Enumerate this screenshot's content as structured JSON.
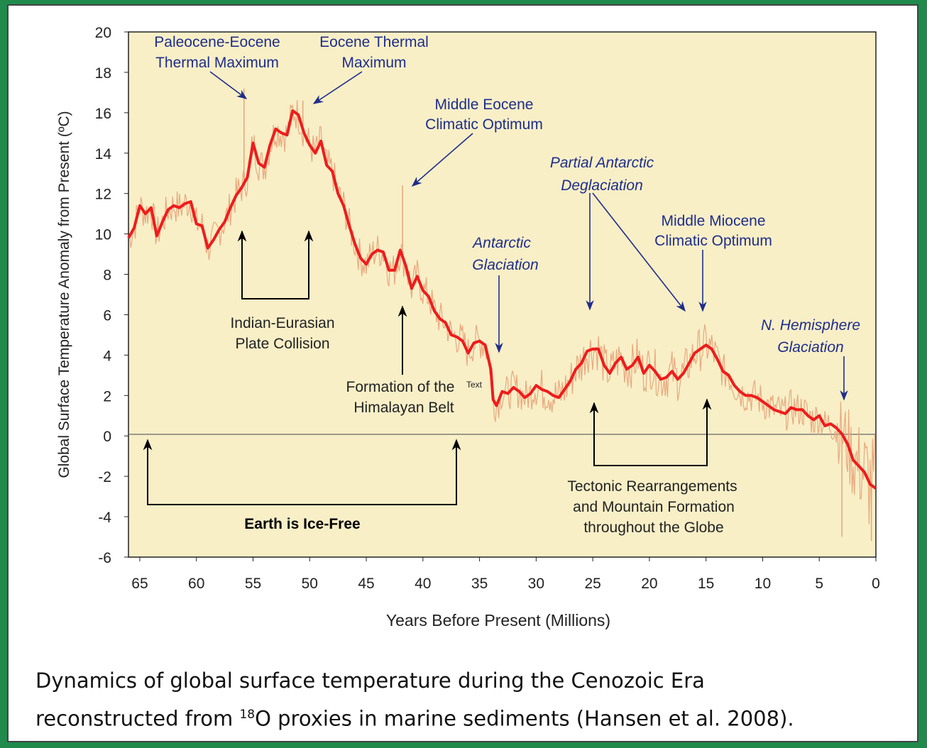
{
  "chart_data": {
    "type": "line",
    "xlabel": "Years Before Present (Millions)",
    "ylabel": "Global Surface Temperature Anomaly from Present (ºC)",
    "xlim": [
      66,
      0
    ],
    "ylim": [
      -6,
      20
    ],
    "x_ticks": [
      "65",
      "60",
      "55",
      "50",
      "45",
      "40",
      "35",
      "30",
      "25",
      "20",
      "15",
      "10",
      "5",
      "0"
    ],
    "y_ticks": [
      "20",
      "18",
      "16",
      "14",
      "12",
      "10",
      "8",
      "6",
      "4",
      "2",
      "0",
      "-2",
      "-4",
      "-6"
    ],
    "grid": false,
    "series": [
      {
        "smoothed": true,
        "x": [
          66,
          65.5,
          65,
          64.5,
          64,
          63.5,
          63,
          62.5,
          62,
          61.5,
          61,
          60.5,
          60,
          59.5,
          59,
          58.5,
          58,
          57.5,
          57,
          56.5,
          56,
          55.5,
          55,
          54.5,
          54,
          53.5,
          53,
          52.5,
          52,
          51.5,
          51,
          50.5,
          50,
          49.5,
          49,
          48.5,
          48,
          47.5,
          47,
          46.5,
          46,
          45.5,
          45,
          44.5,
          44,
          43.5,
          43,
          42.5,
          42,
          41.5,
          41,
          40.5,
          40,
          39.5,
          39,
          38.5,
          38,
          37.5,
          37,
          36.5,
          36,
          35.5,
          35,
          34.5,
          34,
          33.8,
          33.5,
          33,
          32.5,
          32,
          31.5,
          31,
          30.5,
          30,
          29.5,
          29,
          28.5,
          28,
          27.5,
          27,
          26.5,
          26,
          25.5,
          25,
          24.5,
          24,
          23.5,
          23,
          22.5,
          22,
          21.5,
          21,
          20.5,
          20,
          19.5,
          19,
          18.5,
          18,
          17.5,
          17,
          16.5,
          16,
          15.5,
          15,
          14.5,
          14,
          13.5,
          13,
          12.5,
          12,
          11.5,
          11,
          10.5,
          10,
          9.5,
          9,
          8.5,
          8,
          7.5,
          7,
          6.5,
          6,
          5.5,
          5,
          4.5,
          4,
          3.5,
          3,
          2.5,
          2,
          1.5,
          1,
          0.5,
          0
        ],
        "y": [
          9.8,
          10.3,
          11.4,
          11.0,
          11.3,
          9.9,
          10.6,
          11.2,
          11.4,
          11.3,
          11.5,
          11.6,
          10.5,
          10.4,
          9.3,
          9.7,
          10.2,
          10.6,
          11.3,
          11.9,
          12.3,
          12.8,
          14.5,
          13.5,
          13.3,
          14.4,
          15.2,
          15.0,
          14.9,
          16.1,
          15.9,
          15.0,
          14.4,
          14.0,
          14.6,
          13.4,
          13.1,
          12.0,
          11.4,
          10.4,
          9.5,
          8.8,
          8.5,
          9.0,
          9.2,
          9.1,
          8.2,
          8.2,
          9.2,
          8.4,
          7.3,
          7.9,
          7.2,
          6.9,
          6.2,
          5.8,
          5.6,
          5.0,
          4.9,
          4.7,
          4.1,
          4.6,
          4.7,
          4.5,
          3.3,
          1.8,
          1.5,
          2.2,
          2.1,
          2.4,
          2.2,
          1.9,
          2.1,
          2.5,
          2.3,
          2.2,
          2.0,
          1.9,
          2.3,
          2.7,
          3.3,
          3.6,
          4.2,
          4.3,
          4.3,
          3.5,
          3.1,
          3.6,
          3.9,
          3.3,
          3.5,
          3.9,
          3.1,
          3.5,
          3.2,
          2.8,
          2.9,
          3.2,
          2.8,
          3.1,
          3.6,
          4.1,
          4.3,
          4.5,
          4.3,
          3.8,
          3.2,
          3.0,
          2.5,
          2.2,
          2.0,
          2.0,
          1.9,
          1.7,
          1.5,
          1.3,
          1.2,
          1.1,
          1.4,
          1.3,
          1.3,
          1.0,
          0.8,
          1.0,
          0.5,
          0.6,
          0.4,
          0.1,
          -0.4,
          -1.2,
          -1.5,
          -1.8,
          -2.4,
          -2.6
        ]
      }
    ],
    "annotations": {
      "petm": [
        "Paleocene-Eocene",
        "Thermal Maximum"
      ],
      "etm": [
        "Eocene Thermal",
        "Maximum"
      ],
      "meco": [
        "Middle Eocene",
        "Climatic Optimum"
      ],
      "pad": [
        "Partial Antarctic",
        "Deglaciation"
      ],
      "mmco": [
        "Middle Miocene",
        "Climatic Optimum"
      ],
      "ag": [
        "Antarctic",
        "Glaciation"
      ],
      "nhg": [
        "N. Hemisphere",
        "Glaciation"
      ],
      "iepc": [
        "Indian-Eurasian",
        "Plate Collision"
      ],
      "fhb": [
        "Formation of the",
        "Himalayan Belt"
      ],
      "fhb_small": "Text",
      "tr": [
        "Tectonic Rearrangements",
        "and Mountain Formation",
        "throughout the Globe"
      ],
      "ice_free": "Earth is Ice-Free"
    }
  },
  "caption": {
    "line1": "Dynamics of global surface temperature during the Cenozoic Era",
    "line2a": "reconstructed from ",
    "sup": "18",
    "line2b": "O proxies in marine sediments (Hansen et al. 2008)."
  },
  "colors": {
    "plot_bg": "#f8efc7",
    "smoothed_line": "#ee1c1c",
    "raw_noise": "#e7a47a",
    "annotation_blue": "#1f2d8a",
    "frame_green": "#1f8a4c"
  }
}
